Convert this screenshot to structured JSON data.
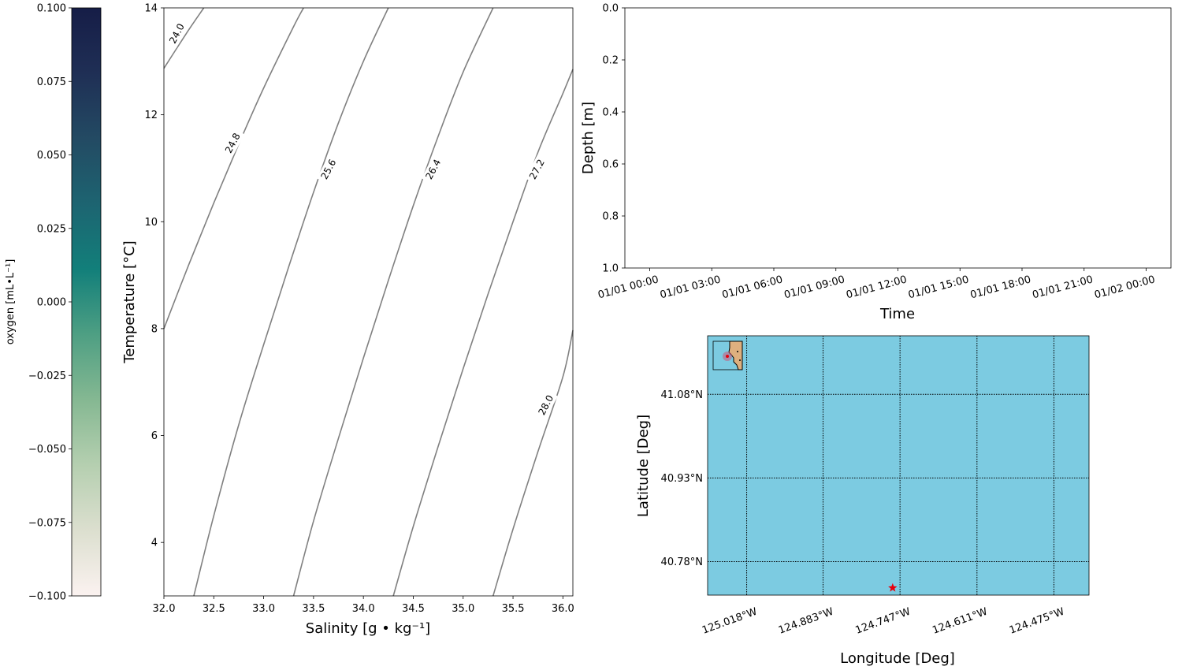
{
  "colors": {
    "contour": "#808080",
    "ocean": "#7ccbe1",
    "land": "#deb07f",
    "star": "#e8000b",
    "colormap": [
      "#fbf2f0",
      "#dcdfcf",
      "#b5cfb0",
      "#85b892",
      "#4e9f83",
      "#127f7a",
      "#1d6471",
      "#234a63",
      "#1f2f55",
      "#161d47"
    ]
  },
  "chart_data": [
    {
      "type": "colorbar",
      "label": "oxygen [mL•L⁻¹]",
      "ylim": [
        -0.1,
        0.1
      ],
      "ticks": [
        "0.100",
        "0.075",
        "0.050",
        "0.025",
        "0.000",
        "−0.025",
        "−0.050",
        "−0.075",
        "−0.100"
      ],
      "tick_values": [
        0.1,
        0.075,
        0.05,
        0.025,
        0.0,
        -0.025,
        -0.05,
        -0.075,
        -0.1
      ]
    },
    {
      "type": "contour",
      "xlabel": "Salinity [g • kg⁻¹]",
      "ylabel": "Temperature [°C]",
      "xlim": [
        32.0,
        36.1
      ],
      "ylim": [
        3,
        14
      ],
      "xticks": [
        "32.0",
        "32.5",
        "33.0",
        "33.5",
        "34.0",
        "34.5",
        "35.0",
        "35.5",
        "36.0"
      ],
      "xtick_values": [
        32.0,
        32.5,
        33.0,
        33.5,
        34.0,
        34.5,
        35.0,
        35.5,
        36.0
      ],
      "yticks": [
        "4",
        "6",
        "8",
        "10",
        "12",
        "14"
      ],
      "ytick_values": [
        4,
        6,
        8,
        10,
        12,
        14
      ],
      "levels": [
        {
          "label": "24.0",
          "points": [
            [
              32.0,
              12.87
            ],
            [
              32.2,
              13.45
            ],
            [
              32.3,
              13.73
            ],
            [
              32.4,
              14.0
            ]
          ],
          "label_at": [
            32.13,
            13.52
          ]
        },
        {
          "label": "24.8",
          "points": [
            [
              32.0,
              8.0
            ],
            [
              32.25,
              9.2
            ],
            [
              32.5,
              10.35
            ],
            [
              32.75,
              11.45
            ],
            [
              33.0,
              12.5
            ],
            [
              33.3,
              13.65
            ],
            [
              33.4,
              14.0
            ]
          ],
          "label_at": [
            32.69,
            11.47
          ]
        },
        {
          "label": "25.6",
          "points": [
            [
              32.3,
              3.0
            ],
            [
              32.5,
              4.5
            ],
            [
              32.75,
              6.2
            ],
            [
              33.0,
              7.7
            ],
            [
              33.25,
              9.15
            ],
            [
              33.5,
              10.55
            ],
            [
              33.75,
              11.85
            ],
            [
              34.0,
              13.0
            ],
            [
              34.25,
              14.0
            ]
          ],
          "label_at": [
            33.65,
            10.98
          ]
        },
        {
          "label": "26.4",
          "points": [
            [
              33.3,
              3.0
            ],
            [
              33.5,
              4.4
            ],
            [
              33.75,
              5.95
            ],
            [
              34.0,
              7.45
            ],
            [
              34.25,
              8.9
            ],
            [
              34.5,
              10.3
            ],
            [
              34.75,
              11.6
            ],
            [
              35.0,
              12.8
            ],
            [
              35.3,
              14.0
            ]
          ],
          "label_at": [
            34.7,
            10.98
          ]
        },
        {
          "label": "27.2",
          "points": [
            [
              34.3,
              3.0
            ],
            [
              34.5,
              4.3
            ],
            [
              34.75,
              5.8
            ],
            [
              35.0,
              7.25
            ],
            [
              35.25,
              8.65
            ],
            [
              35.5,
              10.0
            ],
            [
              35.75,
              11.3
            ],
            [
              36.0,
              12.4
            ],
            [
              36.1,
              12.85
            ]
          ],
          "label_at": [
            35.74,
            10.98
          ]
        },
        {
          "label": "28.0",
          "points": [
            [
              35.3,
              3.0
            ],
            [
              35.5,
              4.25
            ],
            [
              35.75,
              5.7
            ],
            [
              36.0,
              7.1
            ],
            [
              36.1,
              7.97
            ]
          ],
          "label_at": [
            35.83,
            6.57
          ]
        }
      ]
    },
    {
      "type": "line",
      "xlabel": "Time",
      "ylabel": "Depth [m]",
      "ylim": [
        0.0,
        1.0
      ],
      "yticks": [
        "0.0",
        "0.2",
        "0.4",
        "0.6",
        "0.8",
        "1.0"
      ],
      "ytick_values": [
        0.0,
        0.2,
        0.4,
        0.6,
        0.8,
        1.0
      ],
      "xlim": [
        "2021-12-31 22:48",
        "2022-01-02 01:12"
      ],
      "xticks": [
        "01/01 00:00",
        "01/01 03:00",
        "01/01 06:00",
        "01/01 09:00",
        "01/01 12:00",
        "01/01 15:00",
        "01/01 18:00",
        "01/01 21:00",
        "01/02 00:00"
      ],
      "xtick_values": [
        "2022-01-01 00:00",
        "2022-01-01 03:00",
        "2022-01-01 06:00",
        "2022-01-01 09:00",
        "2022-01-01 12:00",
        "2022-01-01 15:00",
        "2022-01-01 18:00",
        "2022-01-01 21:00",
        "2022-01-02 00:00"
      ],
      "series": []
    },
    {
      "type": "map",
      "xlabel": "Longitude [Deg]",
      "ylabel": "Latitude [Deg]",
      "xlim": [
        -125.087,
        -124.413
      ],
      "ylim": [
        40.72,
        41.185
      ],
      "xticks": [
        "125.018°W",
        "124.883°W",
        "124.747°W",
        "124.611°W",
        "124.475°W"
      ],
      "xtick_values": [
        -125.018,
        -124.883,
        -124.747,
        -124.611,
        -124.475
      ],
      "yticks": [
        "41.08°N",
        "40.93°N",
        "40.78°N"
      ],
      "ytick_values": [
        41.08,
        40.93,
        40.78
      ],
      "grid": true,
      "marker": {
        "symbol": "star",
        "lon": -124.76,
        "lat": 40.733
      }
    }
  ]
}
